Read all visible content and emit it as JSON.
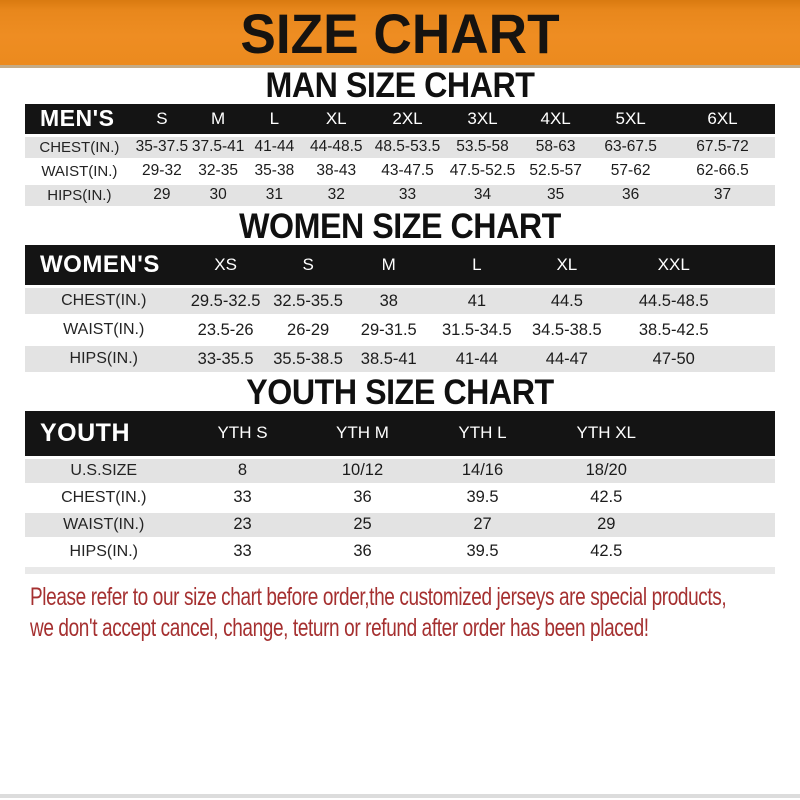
{
  "title": "SIZE CHART",
  "colors": {
    "banner_orange": "#EC8A1E",
    "table_header_black": "#141414",
    "row_stripe_gray": "#E3E3E3",
    "notice_red": "#A53030"
  },
  "sections": [
    {
      "heading": "MAN SIZE CHART",
      "label": "MEN'S",
      "columns": [
        "S",
        "M",
        "L",
        "XL",
        "2XL",
        "3XL",
        "4XL",
        "5XL",
        "6XL"
      ],
      "rows": [
        {
          "label": "CHEST(IN.)",
          "values": [
            "35-37.5",
            "37.5-41",
            "41-44",
            "44-48.5",
            "48.5-53.5",
            "53.5-58",
            "58-63",
            "63-67.5",
            "67.5-72"
          ]
        },
        {
          "label": "WAIST(IN.)",
          "values": [
            "29-32",
            "32-35",
            "35-38",
            "38-43",
            "43-47.5",
            "47.5-52.5",
            "52.5-57",
            "57-62",
            "62-66.5"
          ]
        },
        {
          "label": "HIPS(IN.)",
          "values": [
            "29",
            "30",
            "31",
            "32",
            "33",
            "34",
            "35",
            "36",
            "37"
          ]
        }
      ]
    },
    {
      "heading": "WOMEN SIZE CHART",
      "label": "WOMEN'S",
      "columns": [
        "XS",
        "S",
        "M",
        "L",
        "XL",
        "XXL"
      ],
      "rows": [
        {
          "label": "CHEST(IN.)",
          "values": [
            "29.5-32.5",
            "32.5-35.5",
            "38",
            "41",
            "44.5",
            "44.5-48.5"
          ]
        },
        {
          "label": "WAIST(IN.)",
          "values": [
            "23.5-26",
            "26-29",
            "29-31.5",
            "31.5-34.5",
            "34.5-38.5",
            "38.5-42.5"
          ]
        },
        {
          "label": "HIPS(IN.)",
          "values": [
            "33-35.5",
            "35.5-38.5",
            "38.5-41",
            "41-44",
            "44-47",
            "47-50"
          ]
        }
      ]
    },
    {
      "heading": "YOUTH SIZE CHART",
      "label": "YOUTH",
      "columns": [
        "YTH S",
        "YTH M",
        "YTH L",
        "YTH XL"
      ],
      "rows": [
        {
          "label": "U.S.SIZE",
          "values": [
            "8",
            "10/12",
            "14/16",
            "18/20"
          ]
        },
        {
          "label": "CHEST(IN.)",
          "values": [
            "33",
            "36",
            "39.5",
            "42.5"
          ]
        },
        {
          "label": "WAIST(IN.)",
          "values": [
            "23",
            "25",
            "27",
            "29"
          ]
        },
        {
          "label": "HIPS(IN.)",
          "values": [
            "33",
            "36",
            "39.5",
            "42.5"
          ]
        }
      ]
    }
  ],
  "notice": {
    "line1": "Please refer to our size chart before order,the customized jerseys are special products,",
    "line2": "we don't accept cancel, change, teturn or refund after order has been placed!"
  }
}
